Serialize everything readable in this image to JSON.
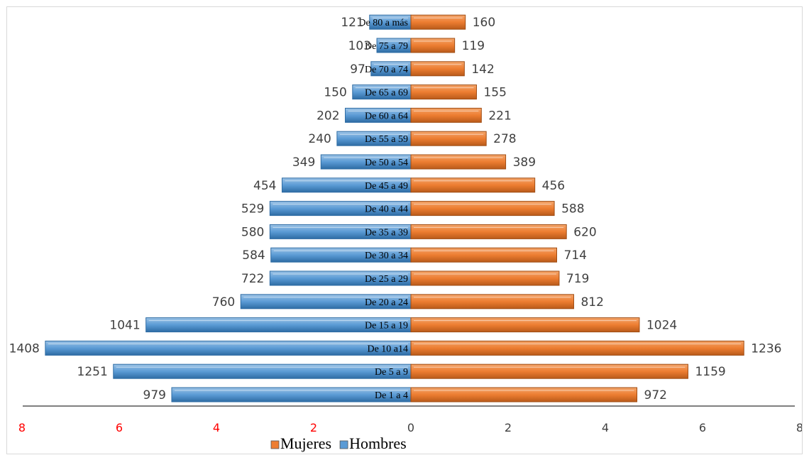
{
  "chart_data": {
    "type": "bar",
    "orientation": "horizontal",
    "title": "",
    "categories": [
      "De 1 a 4",
      "De 5 a 9",
      "De 10 a14",
      "De 15 a 19",
      "De 20 a 24",
      "De 25 a 29",
      "De 30 a 34",
      "De 35 a 39",
      "De 40 a 44",
      "De 45 a 49",
      "De 50 a 54",
      "De 55 a 59",
      "De 60 a 64",
      "De 65 a 69",
      "De 70 a 74",
      "De 75 a 79",
      "De 80 a más"
    ],
    "series": [
      {
        "name": "Hombres",
        "color": "#5b9bd5",
        "direction": "left",
        "values": [
          4.92,
          6.12,
          7.52,
          5.45,
          3.5,
          2.9,
          2.88,
          2.9,
          2.9,
          2.65,
          1.85,
          1.52,
          1.35,
          1.2,
          0.82,
          0.7,
          0.85
        ],
        "labels": [
          "979",
          "1251",
          "1408",
          "1041",
          "760",
          "722",
          "584",
          "580",
          "529",
          "454",
          "349",
          "240",
          "202",
          "150",
          "97",
          "103",
          "121"
        ]
      },
      {
        "name": "Mujeres",
        "color": "#ed7d31",
        "direction": "right",
        "values": [
          4.65,
          5.7,
          6.85,
          4.7,
          3.35,
          3.05,
          3.0,
          3.2,
          2.95,
          2.55,
          1.95,
          1.55,
          1.45,
          1.35,
          1.1,
          0.9,
          1.12
        ],
        "labels": [
          "972",
          "1159",
          "1236",
          "1024",
          "812",
          "719",
          "714",
          "620",
          "588",
          "456",
          "389",
          "278",
          "221",
          "155",
          "142",
          "119",
          "160"
        ]
      }
    ],
    "x_ticks": [
      "8",
      "6",
      "4",
      "2",
      "0",
      "2",
      "4",
      "6",
      "8"
    ],
    "x_tick_colors": [
      "#ff0000",
      "#ff0000",
      "#ff0000",
      "#ff0000",
      "#404040",
      "#404040",
      "#404040",
      "#404040",
      "#404040"
    ],
    "xlim": [
      -8,
      8
    ],
    "legend": {
      "placement": "bottom",
      "items": [
        {
          "label": "Mujeres",
          "color": "#ed7d31"
        },
        {
          "label": "Hombres",
          "color": "#5b9bd5"
        }
      ]
    }
  }
}
